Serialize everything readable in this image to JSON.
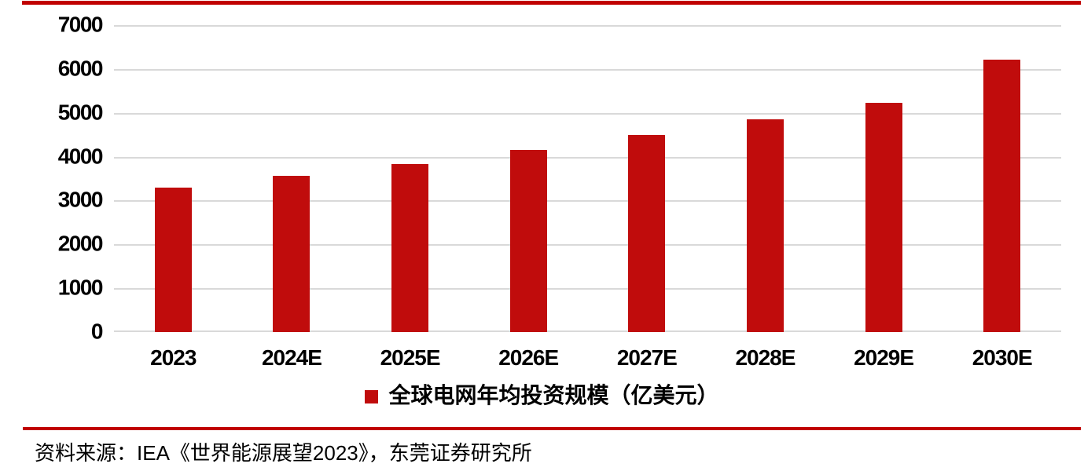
{
  "chart_data": {
    "type": "bar",
    "categories": [
      "2023",
      "2024E",
      "2025E",
      "2026E",
      "2027E",
      "2028E",
      "2029E",
      "2030E"
    ],
    "values": [
      3300,
      3560,
      3840,
      4150,
      4490,
      4850,
      5230,
      6210
    ],
    "series_name": "全球电网年均投资规模（亿美元）",
    "ylim": [
      0,
      7000
    ],
    "yticks": [
      0,
      1000,
      2000,
      3000,
      4000,
      5000,
      6000,
      7000
    ],
    "grid": true,
    "legend_position": "bottom-center",
    "bar_color": "#c00c0c"
  },
  "source": {
    "text": "资料来源：IEA《世界能源展望2023》，东莞证券研究所"
  },
  "colors": {
    "accent_red": "#c00000",
    "bar_red": "#c00c0c",
    "gridline_gray": "#d9d9d9",
    "text_black": "#000000"
  }
}
